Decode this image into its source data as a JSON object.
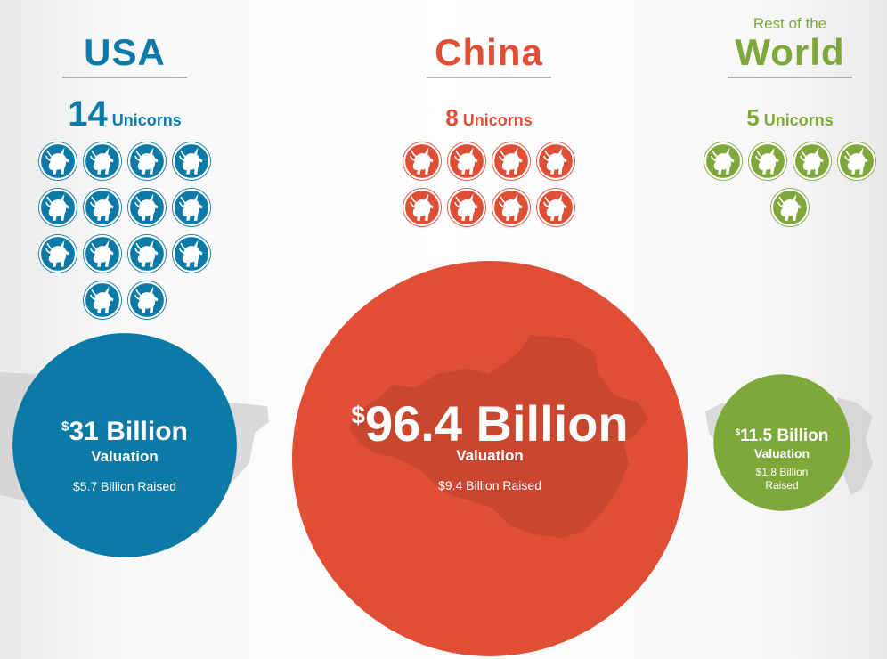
{
  "colors": {
    "usa": "#0b7aa7",
    "china": "#e04e35",
    "world": "#7fa83a",
    "map_gray": "#cfcfcf",
    "rule_gray": "#8a8a8a"
  },
  "chart_data": {
    "type": "bubble-comparison",
    "unit_icon": "unicorn-icon",
    "valuation_label": "Valuation",
    "series": [
      {
        "key": "usa",
        "title_top": "",
        "title": "USA",
        "unicorns": 14,
        "unicorns_number": "14",
        "unicorns_label": "Unicorns",
        "valuation_billion": 31,
        "valuation_currency": "$",
        "valuation_text": "31 Billion",
        "raised_billion": 5.7,
        "raised_text": "$5.7 Billion Raised",
        "color": "#0b7aa7",
        "map_icon": "usa-map-icon"
      },
      {
        "key": "china",
        "title_top": "",
        "title": "China",
        "unicorns": 8,
        "unicorns_number": "8",
        "unicorns_label": "Unicorns",
        "valuation_billion": 96.4,
        "valuation_currency": "$",
        "valuation_text": "96.4 Billion",
        "raised_billion": 9.4,
        "raised_text": "$9.4 Billion Raised",
        "color": "#e04e35",
        "map_icon": "china-map-icon"
      },
      {
        "key": "world",
        "title_top": "Rest of the",
        "title": "World",
        "unicorns": 5,
        "unicorns_number": "5",
        "unicorns_label": "Unicorns",
        "valuation_billion": 11.5,
        "valuation_currency": "$",
        "valuation_text": "11.5 Billion",
        "raised_billion": 1.8,
        "raised_text": "$1.8 Billion Raised",
        "raised_lines": [
          "$1.8 Billion",
          "Raised"
        ],
        "color": "#7fa83a",
        "map_icon": "world-map-icon"
      }
    ]
  }
}
